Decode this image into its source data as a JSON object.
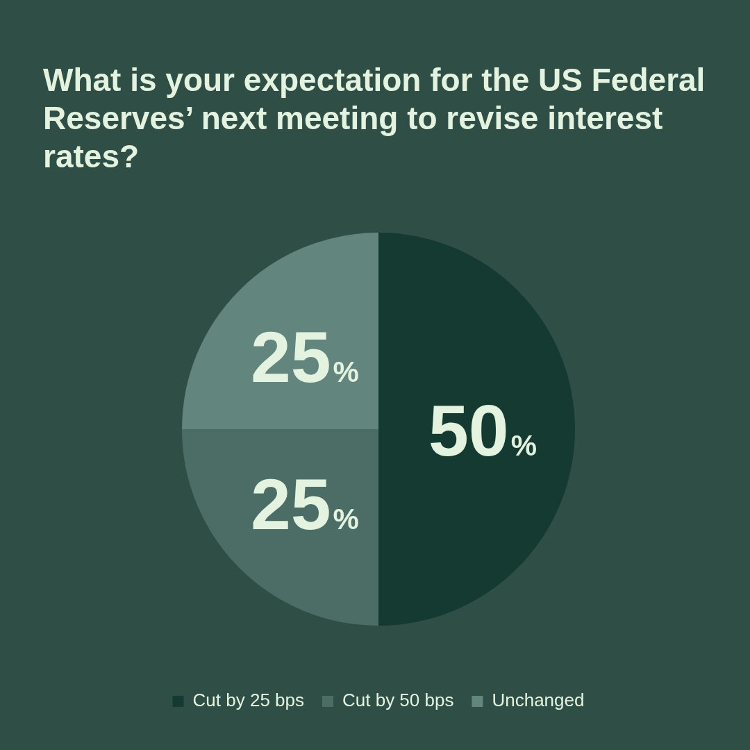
{
  "chart_data": {
    "type": "pie",
    "title": "What is your expectation for the US Federal Reserves’ next meeting to revise interest rates?",
    "categories": [
      "Cut by 25 bps",
      "Cut by 50 bps",
      "Unchanged"
    ],
    "values": [
      50,
      25,
      25
    ],
    "colors": [
      "#143a32",
      "#4b6d66",
      "#62857d"
    ],
    "value_labels": [
      "50%",
      "25%",
      "25%"
    ],
    "legend": "bottom"
  }
}
